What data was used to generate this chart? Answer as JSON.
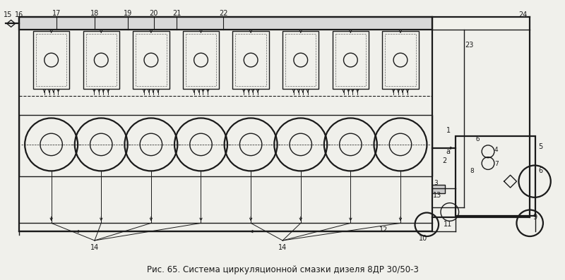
{
  "title": "Рис. 65. Система циркуляционной смазки дизеля 8ДР 30/50-3",
  "bg_color": "#f0f0eb",
  "line_color": "#1a1a1a",
  "fig_width": 8.0,
  "fig_height": 3.97,
  "dpi": 100,
  "caption_fontsize": 8.5,
  "label_fontsize": 7.0
}
